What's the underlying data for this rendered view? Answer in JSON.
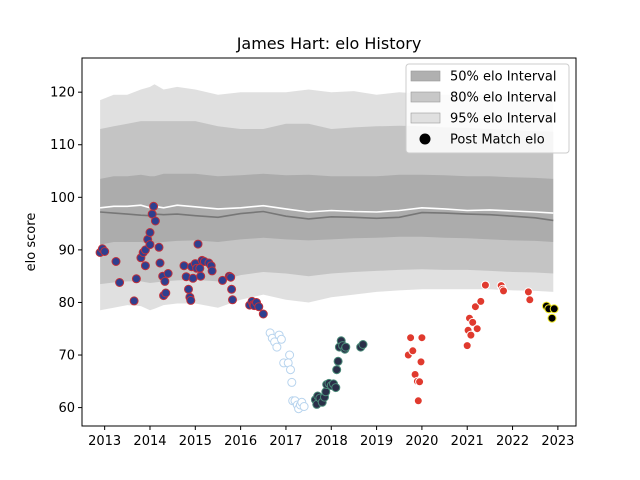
{
  "chart_data": {
    "type": "scatter",
    "title": "James Hart: elo History",
    "xlabel": "",
    "ylabel": "elo score",
    "xlim": [
      2012.5,
      2023.4
    ],
    "ylim": [
      56.5,
      126.5
    ],
    "x_ticks": [
      2013,
      2014,
      2015,
      2016,
      2017,
      2018,
      2019,
      2020,
      2021,
      2022,
      2023
    ],
    "y_ticks": [
      60,
      70,
      80,
      90,
      100,
      110,
      120
    ],
    "grid": false,
    "legend_position": "top-right",
    "legend": [
      {
        "label": "50% elo Interval",
        "kind": "band",
        "color": "#b0b0b0"
      },
      {
        "label": "80% elo Interval",
        "kind": "band",
        "color": "#c8c8c8"
      },
      {
        "label": "95% elo Interval",
        "kind": "band",
        "color": "#e0e0e0"
      },
      {
        "label": "Post Match elo",
        "kind": "marker",
        "color": "#000000"
      }
    ],
    "bands": {
      "x": [
        2012.9,
        2013.2,
        2013.5,
        2013.8,
        2014.0,
        2014.1,
        2014.3,
        2014.6,
        2015.0,
        2015.5,
        2016.0,
        2016.5,
        2017.0,
        2017.5,
        2018.0,
        2018.5,
        2019.0,
        2019.5,
        2020.0,
        2020.5,
        2021.0,
        2021.5,
        2022.0,
        2022.5,
        2022.9
      ],
      "p95_low": [
        78.5,
        79,
        79.5,
        79.3,
        78.5,
        78.8,
        79.5,
        79.8,
        79.8,
        79,
        80.5,
        81.5,
        80.5,
        80,
        81,
        81.5,
        82,
        82.3,
        82.5,
        82.5,
        82.5,
        82.5,
        82.3,
        82.2,
        82
      ],
      "p80_low": [
        83.5,
        83.8,
        84,
        84,
        83.7,
        83.8,
        84,
        84.2,
        84.3,
        84,
        85.2,
        85.8,
        85.5,
        85,
        85.5,
        85.8,
        86,
        86.2,
        86.3,
        86.2,
        86.2,
        86,
        85.8,
        85.7,
        85.5
      ],
      "p50_low": [
        91,
        91.5,
        91.5,
        91.5,
        91.2,
        91.3,
        91.5,
        91.7,
        91.8,
        91.5,
        92,
        92.3,
        92,
        91.8,
        92,
        92.2,
        92.3,
        92.5,
        92.5,
        92.3,
        92.2,
        92,
        91.8,
        91.7,
        91.5
      ],
      "median": [
        97.2,
        97.0,
        96.8,
        96.6,
        96.5,
        96.8,
        96.7,
        96.8,
        96.5,
        96.2,
        96.9,
        97.3,
        96.4,
        95.9,
        96.3,
        96.2,
        96.0,
        96.2,
        97.1,
        97.0,
        96.8,
        96.7,
        96.4,
        96.1,
        95.6
      ],
      "mean": [
        98.0,
        98.3,
        98.3,
        98.5,
        98.0,
        98.3,
        98.0,
        98.5,
        98.2,
        97.8,
        98.0,
        98.4,
        97.8,
        97.2,
        97.5,
        97.3,
        97.2,
        97.5,
        98.0,
        97.8,
        97.5,
        97.6,
        97.4,
        97.2,
        97.0
      ],
      "p50_high": [
        103.5,
        104,
        104,
        104.3,
        104,
        104,
        104.5,
        104.5,
        104.5,
        104,
        104.2,
        104.5,
        104.2,
        104.3,
        104,
        104,
        104,
        104.3,
        104.3,
        104.2,
        104,
        104,
        103.8,
        103.7,
        103.5
      ],
      "p80_high": [
        113,
        113.5,
        114,
        114.5,
        114.5,
        114.5,
        114.5,
        114.5,
        114.5,
        113.5,
        113,
        113,
        114,
        114,
        113,
        113.3,
        113.5,
        113.6,
        113.5,
        113.3,
        113.2,
        113,
        112.8,
        112.6,
        112.5
      ],
      "p95_high": [
        118.5,
        119.5,
        119.5,
        120.5,
        121,
        121.5,
        120.5,
        121,
        120.5,
        119.5,
        120,
        120,
        120,
        120.5,
        120,
        120.2,
        119.5,
        120,
        119.7,
        119.5,
        119.4,
        119.5,
        119.3,
        119,
        119
      ]
    },
    "series": [
      {
        "face": "#2e3f8f",
        "edge": "#c0303a",
        "points": [
          [
            2012.9,
            89.5
          ],
          [
            2012.95,
            90.2
          ],
          [
            2013.0,
            89.7
          ],
          [
            2013.25,
            87.8
          ],
          [
            2013.33,
            83.8
          ],
          [
            2013.65,
            80.3
          ],
          [
            2013.7,
            84.5
          ],
          [
            2013.8,
            88.5
          ],
          [
            2013.85,
            89.5
          ],
          [
            2013.9,
            87
          ],
          [
            2013.9,
            90
          ],
          [
            2013.95,
            92
          ],
          [
            2014.0,
            91
          ],
          [
            2014.0,
            93.3
          ],
          [
            2014.05,
            96.8
          ],
          [
            2014.08,
            98.3
          ],
          [
            2014.12,
            95.5
          ],
          [
            2014.2,
            90.5
          ],
          [
            2014.22,
            87.5
          ],
          [
            2014.28,
            85
          ],
          [
            2014.3,
            81.3
          ],
          [
            2014.33,
            84
          ],
          [
            2014.35,
            81.8
          ],
          [
            2014.4,
            85.5
          ],
          [
            2014.75,
            87
          ],
          [
            2014.8,
            84.9
          ],
          [
            2014.85,
            82.5
          ],
          [
            2014.88,
            81
          ],
          [
            2014.9,
            80.4
          ],
          [
            2014.92,
            86.8
          ],
          [
            2014.95,
            84.6
          ],
          [
            2015.0,
            87.4
          ],
          [
            2015.03,
            86.5
          ],
          [
            2015.06,
            91.1
          ],
          [
            2015.1,
            86.5
          ],
          [
            2015.12,
            85
          ],
          [
            2015.15,
            88
          ],
          [
            2015.2,
            87.8
          ],
          [
            2015.3,
            87.5
          ],
          [
            2015.35,
            87
          ],
          [
            2015.37,
            86
          ],
          [
            2015.6,
            84.2
          ],
          [
            2015.75,
            85
          ],
          [
            2015.78,
            84.8
          ],
          [
            2015.8,
            82.5
          ],
          [
            2015.82,
            80.5
          ],
          [
            2016.2,
            79.5
          ],
          [
            2016.25,
            80.2
          ],
          [
            2016.28,
            79.6
          ],
          [
            2016.3,
            79.4
          ],
          [
            2016.35,
            80
          ],
          [
            2016.4,
            79.2
          ],
          [
            2016.5,
            77.8
          ]
        ]
      },
      {
        "face": "#ffffff",
        "edge": "#b8d4ee",
        "points": [
          [
            2016.65,
            74.2
          ],
          [
            2016.7,
            73.2
          ],
          [
            2016.75,
            72.5
          ],
          [
            2016.8,
            71.5
          ],
          [
            2016.85,
            73.8
          ],
          [
            2016.9,
            73
          ],
          [
            2016.95,
            68.5
          ],
          [
            2017.05,
            68.5
          ],
          [
            2017.08,
            70
          ],
          [
            2017.1,
            67.2
          ],
          [
            2017.13,
            64.8
          ],
          [
            2017.15,
            61.3
          ],
          [
            2017.2,
            61.3
          ],
          [
            2017.25,
            60.5
          ],
          [
            2017.28,
            59.8
          ],
          [
            2017.32,
            60.5
          ],
          [
            2017.35,
            61
          ],
          [
            2017.4,
            60.2
          ]
        ]
      },
      {
        "face": "#2a2f48",
        "edge": "#4a8a78",
        "points": [
          [
            2017.65,
            61.5
          ],
          [
            2017.68,
            60.6
          ],
          [
            2017.7,
            62.2
          ],
          [
            2017.75,
            61.8
          ],
          [
            2017.8,
            61
          ],
          [
            2017.85,
            62
          ],
          [
            2017.88,
            63
          ],
          [
            2017.9,
            64.4
          ],
          [
            2017.95,
            64.6
          ],
          [
            2018.0,
            64.2
          ],
          [
            2018.05,
            64.5
          ],
          [
            2018.1,
            63.8
          ],
          [
            2018.12,
            67.2
          ],
          [
            2018.15,
            68.8
          ],
          [
            2018.18,
            71.5
          ],
          [
            2018.22,
            72.7
          ],
          [
            2018.25,
            71.8
          ],
          [
            2018.3,
            71.1
          ],
          [
            2018.32,
            71.5
          ],
          [
            2018.65,
            71.5
          ],
          [
            2018.7,
            72
          ]
        ]
      },
      {
        "face": "#e03a2e",
        "edge": "#ffffff",
        "points": [
          [
            2019.7,
            70
          ],
          [
            2019.75,
            73.3
          ],
          [
            2019.8,
            70.8
          ],
          [
            2019.85,
            66.3
          ],
          [
            2019.9,
            65
          ],
          [
            2019.92,
            61.3
          ],
          [
            2019.95,
            64.9
          ],
          [
            2019.98,
            68.7
          ],
          [
            2020.0,
            73.3
          ],
          [
            2021.0,
            71.8
          ],
          [
            2021.02,
            74.7
          ],
          [
            2021.05,
            77
          ],
          [
            2021.08,
            73.8
          ],
          [
            2021.12,
            76.2
          ],
          [
            2021.18,
            79.2
          ],
          [
            2021.22,
            75
          ],
          [
            2021.3,
            80.2
          ],
          [
            2021.4,
            83.3
          ],
          [
            2021.75,
            83.2
          ],
          [
            2021.78,
            82.5
          ],
          [
            2021.8,
            82.2
          ],
          [
            2022.35,
            82
          ],
          [
            2022.38,
            80.5
          ]
        ]
      },
      {
        "face": "#000000",
        "edge": "#f2ea2a",
        "points": [
          [
            2022.75,
            79.3
          ],
          [
            2022.8,
            78.8
          ],
          [
            2022.87,
            77
          ],
          [
            2022.92,
            78.8
          ]
        ]
      }
    ]
  }
}
